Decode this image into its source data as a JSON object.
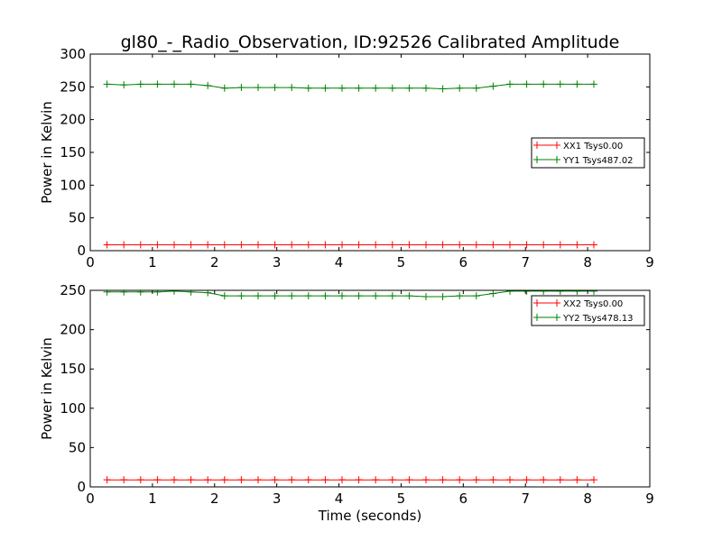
{
  "title": "gl80_-_Radio_Observation, ID:92526 Calibrated Amplitude",
  "colors": {
    "XX": "#ff0000",
    "YY": "#008000"
  },
  "chart_data": [
    {
      "type": "line",
      "xlabel": "",
      "ylabel": "Power in Kelvin",
      "xlim": [
        0,
        9
      ],
      "ylim": [
        0,
        300
      ],
      "xticks": [
        "0",
        "1",
        "2",
        "3",
        "4",
        "5",
        "6",
        "7",
        "8",
        "9"
      ],
      "yticks": [
        "0",
        "50",
        "100",
        "150",
        "200",
        "250",
        "300"
      ],
      "grid": false,
      "legend_position": "right",
      "x": [
        0.27,
        0.54,
        0.81,
        1.08,
        1.35,
        1.62,
        1.89,
        2.16,
        2.43,
        2.7,
        2.97,
        3.24,
        3.51,
        3.78,
        4.05,
        4.32,
        4.59,
        4.86,
        5.13,
        5.4,
        5.67,
        5.94,
        6.21,
        6.48,
        6.75,
        7.02,
        7.29,
        7.56,
        7.83,
        8.1
      ],
      "series": [
        {
          "name": "XX1 Tsys0.00",
          "color": "#ff0000",
          "values": [
            9,
            9,
            9,
            9,
            9,
            9,
            9,
            9,
            9,
            9,
            9,
            9,
            9,
            9,
            9,
            9,
            9,
            9,
            9,
            9,
            9,
            9,
            9,
            9,
            9,
            9,
            9,
            9,
            9,
            9
          ]
        },
        {
          "name": "YY1 Tsys487.02",
          "color": "#008000",
          "values": [
            254,
            253,
            254,
            254,
            254,
            254,
            252,
            248,
            249,
            249,
            249,
            249,
            248,
            248,
            248,
            248,
            248,
            248,
            248,
            248,
            247,
            248,
            248,
            251,
            254,
            254,
            254,
            254,
            254,
            254
          ]
        }
      ]
    },
    {
      "type": "line",
      "xlabel": "Time (seconds)",
      "ylabel": "Power in Kelvin",
      "xlim": [
        0,
        9
      ],
      "ylim": [
        0,
        250
      ],
      "xticks": [
        "0",
        "1",
        "2",
        "3",
        "4",
        "5",
        "6",
        "7",
        "8",
        "9"
      ],
      "yticks": [
        "0",
        "50",
        "100",
        "150",
        "200",
        "250"
      ],
      "grid": false,
      "legend_position": "top-right",
      "x": [
        0.27,
        0.54,
        0.81,
        1.08,
        1.35,
        1.62,
        1.89,
        2.16,
        2.43,
        2.7,
        2.97,
        3.24,
        3.51,
        3.78,
        4.05,
        4.32,
        4.59,
        4.86,
        5.13,
        5.4,
        5.67,
        5.94,
        6.21,
        6.48,
        6.75,
        7.02,
        7.29,
        7.56,
        7.83,
        8.1
      ],
      "series": [
        {
          "name": "XX2 Tsys0.00",
          "color": "#ff0000",
          "values": [
            9,
            9,
            9,
            9,
            9,
            9,
            9,
            9,
            9,
            9,
            9,
            9,
            9,
            9,
            9,
            9,
            9,
            9,
            9,
            9,
            9,
            9,
            9,
            9,
            9,
            9,
            9,
            9,
            9,
            9
          ]
        },
        {
          "name": "YY2 Tsys478.13",
          "color": "#008000",
          "values": [
            248,
            248,
            248,
            248,
            249,
            248,
            247,
            243,
            243,
            243,
            243,
            243,
            243,
            243,
            243,
            243,
            243,
            243,
            243,
            242,
            242,
            243,
            243,
            246,
            249,
            249,
            249,
            249,
            249,
            249
          ]
        }
      ]
    }
  ]
}
